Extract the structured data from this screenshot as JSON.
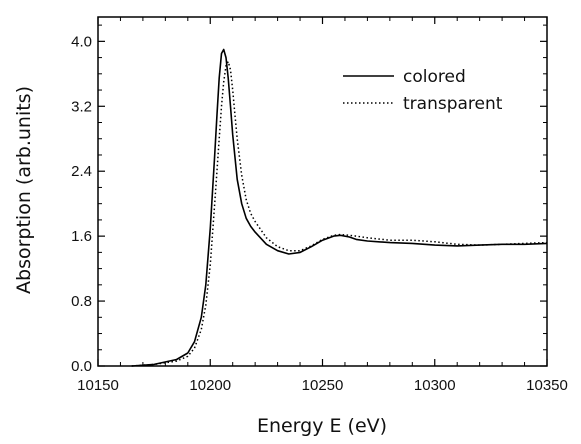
{
  "chart_data": {
    "type": "line",
    "title": "",
    "xlabel": "Energy E (eV)",
    "ylabel": "Absorption (arb.units)",
    "xlim": [
      10150,
      10350
    ],
    "ylim": [
      0,
      4.3
    ],
    "xticks": [
      10150,
      10200,
      10250,
      10300,
      10350
    ],
    "xtick_labels": [
      "10150",
      "10200",
      "10250",
      "10300",
      "10350"
    ],
    "yticks": [
      0,
      0.8,
      1.6,
      2.4,
      3.2,
      4.0
    ],
    "ytick_labels": [
      "0.0",
      "0.8",
      "1.6",
      "2.4",
      "3.2",
      "4.0"
    ],
    "legend_position": "top-right",
    "grid": false,
    "series": [
      {
        "name": "colored",
        "style": "solid",
        "x": [
          10165,
          10175,
          10185,
          10190,
          10193,
          10196,
          10198,
          10200,
          10202,
          10203,
          10204,
          10205,
          10206,
          10207,
          10208,
          10209,
          10210,
          10212,
          10214,
          10216,
          10218,
          10220,
          10225,
          10230,
          10235,
          10240,
          10245,
          10250,
          10255,
          10258,
          10262,
          10265,
          10270,
          10280,
          10290,
          10300,
          10310,
          10320,
          10330,
          10340,
          10350
        ],
        "y": [
          0.0,
          0.02,
          0.08,
          0.16,
          0.3,
          0.6,
          1.0,
          1.7,
          2.6,
          3.1,
          3.55,
          3.85,
          3.9,
          3.8,
          3.55,
          3.2,
          2.85,
          2.3,
          2.0,
          1.82,
          1.72,
          1.65,
          1.5,
          1.42,
          1.38,
          1.4,
          1.47,
          1.55,
          1.6,
          1.61,
          1.59,
          1.56,
          1.54,
          1.52,
          1.51,
          1.49,
          1.48,
          1.49,
          1.5,
          1.5,
          1.51
        ]
      },
      {
        "name": "transparent",
        "style": "dotted",
        "x": [
          10165,
          10175,
          10185,
          10190,
          10193,
          10196,
          10198,
          10200,
          10202,
          10204,
          10205,
          10206,
          10207,
          10208,
          10209,
          10210,
          10211,
          10212,
          10214,
          10216,
          10218,
          10220,
          10225,
          10230,
          10235,
          10240,
          10245,
          10250,
          10255,
          10258,
          10262,
          10265,
          10270,
          10280,
          10290,
          10300,
          10310,
          10320,
          10330,
          10340,
          10350
        ],
        "y": [
          0.0,
          0.02,
          0.06,
          0.12,
          0.22,
          0.45,
          0.75,
          1.25,
          2.0,
          2.8,
          3.2,
          3.5,
          3.7,
          3.75,
          3.65,
          3.4,
          3.1,
          2.8,
          2.35,
          2.05,
          1.88,
          1.78,
          1.58,
          1.47,
          1.42,
          1.42,
          1.48,
          1.56,
          1.61,
          1.62,
          1.61,
          1.6,
          1.58,
          1.55,
          1.55,
          1.53,
          1.5,
          1.49,
          1.5,
          1.51,
          1.52
        ]
      }
    ]
  }
}
